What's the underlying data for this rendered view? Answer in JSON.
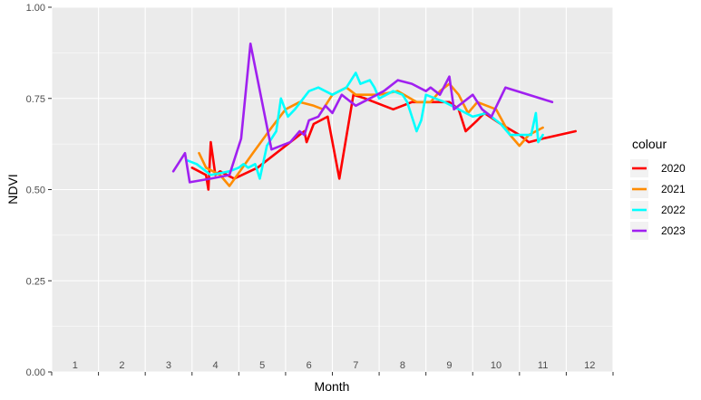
{
  "chart_data": {
    "type": "line",
    "xlabel": "Month",
    "ylabel": "NDVI",
    "xlim": [
      0.5,
      12.5
    ],
    "ylim": [
      0,
      1
    ],
    "y_ticks": [
      0.0,
      0.25,
      0.5,
      0.75,
      1.0
    ],
    "y_tick_labels": [
      "0.00",
      "0.25",
      "0.50",
      "0.75",
      "1.00"
    ],
    "month_labels": [
      "1",
      "2",
      "3",
      "4",
      "5",
      "6",
      "7",
      "8",
      "9",
      "10",
      "11",
      "12"
    ],
    "grid": true,
    "legend": {
      "title": "colour",
      "position": "right"
    },
    "series": [
      {
        "name": "2020",
        "color": "#ff0000",
        "points": [
          [
            3.5,
            0.56
          ],
          [
            3.8,
            0.54
          ],
          [
            3.85,
            0.5
          ],
          [
            3.9,
            0.63
          ],
          [
            4.0,
            0.54
          ],
          [
            4.1,
            0.55
          ],
          [
            4.4,
            0.53
          ],
          [
            4.9,
            0.56
          ],
          [
            5.9,
            0.66
          ],
          [
            5.95,
            0.63
          ],
          [
            6.1,
            0.68
          ],
          [
            6.4,
            0.7
          ],
          [
            6.65,
            0.53
          ],
          [
            6.95,
            0.76
          ],
          [
            7.2,
            0.75
          ],
          [
            7.6,
            0.73
          ],
          [
            7.8,
            0.72
          ],
          [
            8.2,
            0.74
          ],
          [
            8.6,
            0.74
          ],
          [
            9.0,
            0.74
          ],
          [
            9.2,
            0.72
          ],
          [
            9.35,
            0.66
          ],
          [
            9.6,
            0.69
          ],
          [
            9.75,
            0.71
          ],
          [
            10.1,
            0.68
          ],
          [
            10.5,
            0.65
          ],
          [
            10.7,
            0.63
          ],
          [
            11.0,
            0.64
          ],
          [
            11.7,
            0.66
          ]
        ]
      },
      {
        "name": "2021",
        "color": "#ff8c00",
        "points": [
          [
            3.65,
            0.6
          ],
          [
            3.8,
            0.56
          ],
          [
            4.1,
            0.54
          ],
          [
            4.3,
            0.51
          ],
          [
            4.8,
            0.6
          ],
          [
            5.2,
            0.67
          ],
          [
            5.5,
            0.72
          ],
          [
            5.8,
            0.74
          ],
          [
            6.1,
            0.73
          ],
          [
            6.3,
            0.72
          ],
          [
            6.5,
            0.76
          ],
          [
            6.8,
            0.78
          ],
          [
            7.0,
            0.76
          ],
          [
            7.5,
            0.76
          ],
          [
            7.9,
            0.77
          ],
          [
            8.3,
            0.74
          ],
          [
            8.6,
            0.74
          ],
          [
            8.8,
            0.77
          ],
          [
            9.0,
            0.79
          ],
          [
            9.2,
            0.76
          ],
          [
            9.4,
            0.71
          ],
          [
            9.6,
            0.74
          ],
          [
            10.0,
            0.72
          ],
          [
            10.3,
            0.65
          ],
          [
            10.5,
            0.62
          ],
          [
            10.7,
            0.65
          ],
          [
            11.0,
            0.67
          ]
        ]
      },
      {
        "name": "2022",
        "color": "#00ffff",
        "points": [
          [
            3.4,
            0.58
          ],
          [
            3.6,
            0.57
          ],
          [
            3.9,
            0.54
          ],
          [
            4.3,
            0.55
          ],
          [
            4.5,
            0.56
          ],
          [
            4.6,
            0.57
          ],
          [
            4.7,
            0.56
          ],
          [
            4.85,
            0.57
          ],
          [
            4.95,
            0.53
          ],
          [
            5.1,
            0.62
          ],
          [
            5.3,
            0.66
          ],
          [
            5.4,
            0.75
          ],
          [
            5.55,
            0.7
          ],
          [
            5.7,
            0.72
          ],
          [
            6.0,
            0.77
          ],
          [
            6.2,
            0.78
          ],
          [
            6.5,
            0.76
          ],
          [
            6.8,
            0.78
          ],
          [
            7.0,
            0.82
          ],
          [
            7.1,
            0.79
          ],
          [
            7.3,
            0.8
          ],
          [
            7.4,
            0.78
          ],
          [
            7.5,
            0.75
          ],
          [
            7.8,
            0.77
          ],
          [
            8.0,
            0.76
          ],
          [
            8.1,
            0.74
          ],
          [
            8.2,
            0.7
          ],
          [
            8.3,
            0.66
          ],
          [
            8.4,
            0.69
          ],
          [
            8.5,
            0.76
          ],
          [
            8.7,
            0.75
          ],
          [
            8.9,
            0.74
          ],
          [
            9.2,
            0.72
          ],
          [
            9.5,
            0.7
          ],
          [
            9.8,
            0.71
          ],
          [
            10.1,
            0.68
          ],
          [
            10.3,
            0.65
          ],
          [
            10.5,
            0.65
          ],
          [
            10.75,
            0.65
          ],
          [
            10.85,
            0.71
          ],
          [
            10.9,
            0.63
          ],
          [
            11.0,
            0.65
          ]
        ]
      },
      {
        "name": "2023",
        "color": "#a020f0",
        "points": [
          [
            3.1,
            0.55
          ],
          [
            3.35,
            0.6
          ],
          [
            3.45,
            0.52
          ],
          [
            3.9,
            0.53
          ],
          [
            4.3,
            0.54
          ],
          [
            4.55,
            0.64
          ],
          [
            4.75,
            0.9
          ],
          [
            5.2,
            0.61
          ],
          [
            5.4,
            0.62
          ],
          [
            5.6,
            0.63
          ],
          [
            5.8,
            0.66
          ],
          [
            5.9,
            0.65
          ],
          [
            6.0,
            0.69
          ],
          [
            6.2,
            0.7
          ],
          [
            6.35,
            0.73
          ],
          [
            6.5,
            0.71
          ],
          [
            6.7,
            0.76
          ],
          [
            6.9,
            0.74
          ],
          [
            7.0,
            0.73
          ],
          [
            7.3,
            0.75
          ],
          [
            7.6,
            0.77
          ],
          [
            7.9,
            0.8
          ],
          [
            8.2,
            0.79
          ],
          [
            8.5,
            0.77
          ],
          [
            8.6,
            0.78
          ],
          [
            8.8,
            0.76
          ],
          [
            9.0,
            0.81
          ],
          [
            9.1,
            0.72
          ],
          [
            9.3,
            0.74
          ],
          [
            9.5,
            0.76
          ],
          [
            9.7,
            0.72
          ],
          [
            9.9,
            0.7
          ],
          [
            10.2,
            0.78
          ],
          [
            11.2,
            0.74
          ]
        ]
      }
    ]
  }
}
